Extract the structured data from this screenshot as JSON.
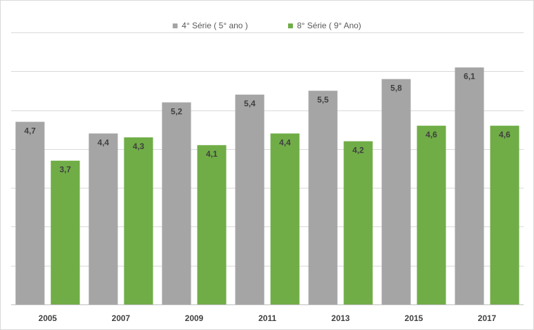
{
  "chart_data": {
    "type": "bar",
    "title": "",
    "xlabel": "",
    "ylabel": "",
    "categories": [
      "2005",
      "2007",
      "2009",
      "2011",
      "2013",
      "2015",
      "2017"
    ],
    "series": [
      {
        "name": "4° Série ( 5° ano )",
        "values": [
          4.7,
          4.4,
          5.2,
          5.4,
          5.5,
          5.8,
          6.1
        ],
        "labels": [
          "4,7",
          "4,4",
          "5,2",
          "5,4",
          "5,5",
          "5,8",
          "6,1"
        ],
        "color": "#a5a5a5"
      },
      {
        "name": "8° Série ( 9° Ano)",
        "values": [
          3.7,
          4.3,
          4.1,
          4.4,
          4.2,
          4.6,
          4.6
        ],
        "labels": [
          "3,7",
          "4,3",
          "4,1",
          "4,4",
          "4,2",
          "4,6",
          "4,6"
        ],
        "color": "#70ad47"
      }
    ],
    "ylim": [
      0,
      7
    ],
    "grid": true,
    "y_tick_labels_visible": false,
    "legend_position": "top-center"
  }
}
